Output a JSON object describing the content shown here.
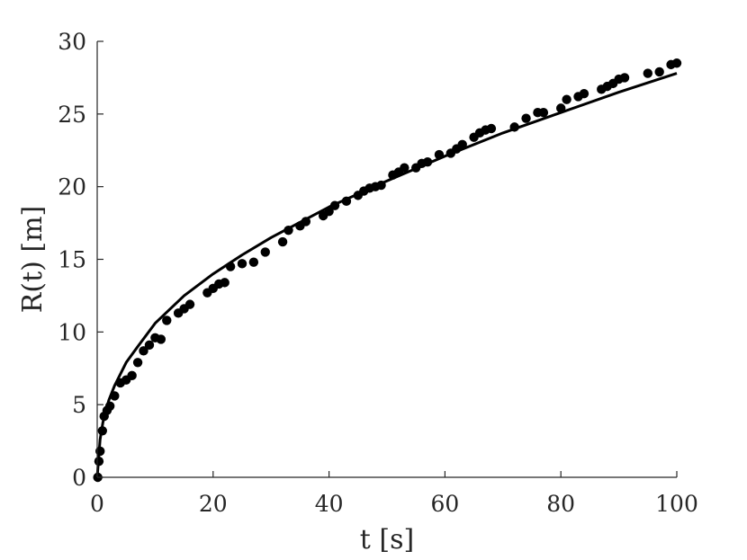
{
  "chart_data": {
    "type": "scatter",
    "xlabel": "t [s]",
    "ylabel": "R(t) [m]",
    "xlim": [
      0,
      100
    ],
    "ylim": [
      0,
      30
    ],
    "xticks": [
      0,
      20,
      40,
      60,
      80,
      100
    ],
    "yticks": [
      0,
      5,
      10,
      15,
      20,
      25,
      30
    ],
    "grid": false,
    "box": false,
    "colors": {
      "axis": "#262626",
      "points": "#000000",
      "fit_line": "#000000"
    },
    "series": [
      {
        "kind": "points",
        "x": [
          0.1,
          0.3,
          0.5,
          0.9,
          1.2,
          1.7,
          2.2,
          3,
          4,
          5,
          6,
          7,
          8,
          9,
          10,
          11,
          12,
          14,
          15,
          16,
          19,
          20,
          21,
          22,
          23,
          25,
          27,
          29,
          32,
          33,
          35,
          36,
          39,
          40,
          41,
          43,
          45,
          46,
          47,
          48,
          49,
          51,
          52,
          53,
          55,
          56,
          57,
          59,
          61,
          62,
          63,
          65,
          66,
          67,
          68,
          72,
          74,
          76,
          77,
          80,
          81,
          83,
          84,
          87,
          88,
          89,
          90,
          91,
          95,
          97,
          99,
          100
        ],
        "y": [
          0,
          1.1,
          1.8,
          3.2,
          4.2,
          4.6,
          4.9,
          5.6,
          6.5,
          6.7,
          7.0,
          7.9,
          8.7,
          9.1,
          9.6,
          9.5,
          10.8,
          11.3,
          11.6,
          11.9,
          12.7,
          13.0,
          13.3,
          13.4,
          14.5,
          14.7,
          14.8,
          15.5,
          16.2,
          17.0,
          17.3,
          17.6,
          18.0,
          18.3,
          18.7,
          19.0,
          19.4,
          19.7,
          19.9,
          20.0,
          20.1,
          20.8,
          21.0,
          21.3,
          21.3,
          21.6,
          21.7,
          22.2,
          22.3,
          22.6,
          22.9,
          23.4,
          23.7,
          23.9,
          24.0,
          24.1,
          24.7,
          25.1,
          25.1,
          25.4,
          26.0,
          26.2,
          26.4,
          26.7,
          26.9,
          27.1,
          27.4,
          27.5,
          27.8,
          27.9,
          28.4,
          28.5
        ]
      },
      {
        "kind": "line",
        "x": [
          0,
          0.5,
          1,
          2,
          3,
          5,
          7,
          10,
          15,
          20,
          25,
          30,
          40,
          50,
          60,
          70,
          80,
          90,
          100
        ],
        "y": [
          0,
          2.6,
          3.8,
          5.3,
          6.3,
          7.9,
          9.0,
          10.6,
          12.5,
          14.0,
          15.3,
          16.5,
          18.6,
          20.4,
          22.1,
          23.7,
          25.1,
          26.5,
          27.8
        ]
      }
    ]
  }
}
